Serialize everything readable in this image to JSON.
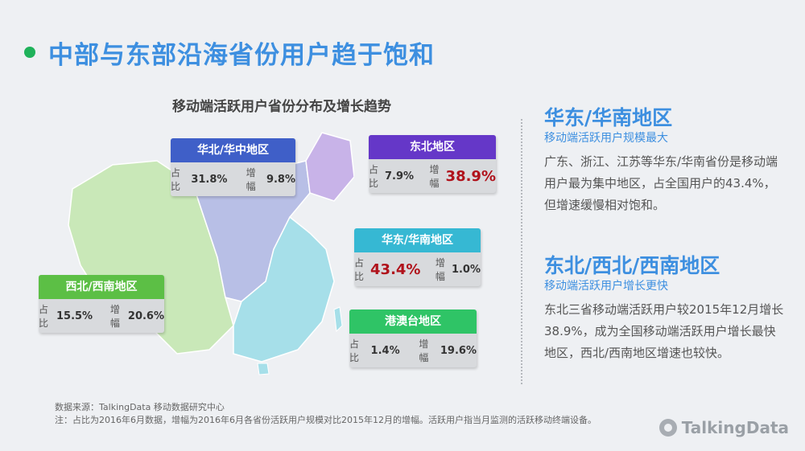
{
  "header": {
    "title": "中部与东部沿海省份用户趋于饱和"
  },
  "map": {
    "title": "移动端活跃用户省份分布及增长趋势"
  },
  "cards": [
    {
      "name": "华北/华中地区",
      "share_label": "占比",
      "share": "31.8%",
      "growth_label": "增幅",
      "growth": "9.8%",
      "head_color": "#3f5fc8"
    },
    {
      "name": "东北地区",
      "share_label": "占比",
      "share": "7.9%",
      "growth_label": "增幅",
      "growth": "38.9%",
      "head_color": "#6537c8"
    },
    {
      "name": "华东/华南地区",
      "share_label": "占比",
      "share": "43.4%",
      "growth_label": "增幅",
      "growth": "1.0%",
      "head_color": "#36b8d3"
    },
    {
      "name": "西北/西南地区",
      "share_label": "占比",
      "share": "15.5%",
      "growth_label": "增幅",
      "growth": "20.6%",
      "head_color": "#5cbf45"
    },
    {
      "name": "港澳台地区",
      "share_label": "占比",
      "share": "1.4%",
      "growth_label": "增幅",
      "growth": "19.6%",
      "head_color": "#2fc466"
    }
  ],
  "sections": [
    {
      "heading": "华东/华南地区",
      "subheading": "移动端活跃用户规模最大",
      "body": "广东、浙江、江苏等华东/华南省份是移动端用户最为集中地区，占全国用户的43.4%，但增速缓慢相对饱和。"
    },
    {
      "heading": "东北/西北/西南地区",
      "subheading": "移动端活跃用户增长更快",
      "body": "东北三省移动端活跃用户较2015年12月增长38.9%，成为全国移动端活跃用户增长最快地区，西北/西南地区增速也较快。"
    }
  ],
  "footer": {
    "source": "数据来源：TalkingData 移动数据研究中心",
    "note": "注：占比为2016年6月数据，增幅为2016年6月各省份活跃用户规模对比2015年12月的增幅。活跃用户指当月监测的活跃移动终端设备。",
    "logo": "TalkingData"
  }
}
